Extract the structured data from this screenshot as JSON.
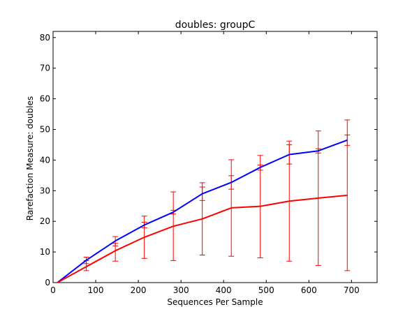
{
  "chart_data": {
    "type": "line",
    "title": "doubles: groupC",
    "xlabel": "Sequences Per Sample",
    "ylabel": "Rarefaction Measure: doubles",
    "xlim": [
      0,
      760
    ],
    "ylim": [
      0,
      82
    ],
    "xticks": [
      0,
      100,
      200,
      300,
      400,
      500,
      600,
      700
    ],
    "yticks": [
      0,
      10,
      20,
      30,
      40,
      50,
      60,
      70,
      80
    ],
    "grid": false,
    "legend": "none",
    "x": [
      10,
      78,
      146,
      214,
      282,
      350,
      418,
      486,
      554,
      622,
      690
    ],
    "series": [
      {
        "color": "#0000ff",
        "values": [
          0,
          7.3,
          13.6,
          18.8,
          23.0,
          29.0,
          32.7,
          37.6,
          41.8,
          43.0,
          46.5
        ],
        "err_low": [
          0,
          6.2,
          12.0,
          17.9,
          22.4,
          26.8,
          30.5,
          36.7,
          38.7,
          42.3,
          44.8
        ],
        "err_high": [
          0,
          8.3,
          15.0,
          19.7,
          23.6,
          31.2,
          34.9,
          38.4,
          45.0,
          43.7,
          48.2
        ]
      },
      {
        "color": "#ff0000",
        "values": [
          0,
          5.2,
          10.4,
          14.8,
          18.4,
          20.8,
          24.4,
          24.9,
          26.6,
          27.6,
          28.5
        ],
        "err_low": [
          0,
          3.9,
          7.0,
          7.9,
          7.2,
          9.0,
          8.6,
          8.1,
          7.0,
          5.6,
          3.9
        ],
        "err_high": [
          0,
          7.2,
          12.8,
          21.7,
          29.6,
          32.6,
          40.1,
          41.5,
          46.2,
          49.5,
          53.1
        ]
      }
    ]
  }
}
